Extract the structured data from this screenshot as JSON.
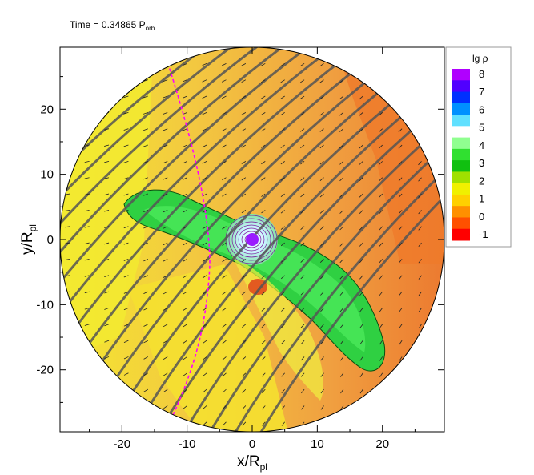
{
  "header": {
    "time_label": "Time = 0.34865 P",
    "time_sub": "orb"
  },
  "chart_data": {
    "type": "heatmap",
    "title": "",
    "xlabel": "x/R",
    "xlabel_sub": "pl",
    "ylabel": "y/R",
    "ylabel_sub": "pl",
    "xlim": [
      -29.5,
      29.5
    ],
    "ylim": [
      -29.5,
      29.5
    ],
    "x_ticks": [
      -20,
      -10,
      0,
      10,
      20
    ],
    "y_ticks": [
      20,
      10,
      0,
      -10,
      -20
    ],
    "x_tick_labels": [
      "-20",
      "-10",
      "0",
      "10",
      "20"
    ],
    "y_tick_labels": [
      "20",
      "10",
      "0",
      "-10",
      "-20"
    ],
    "domain_radius": 29.5,
    "planet": {
      "x": 0,
      "y": 0,
      "radius": 1,
      "color": "#9a1bff"
    },
    "colorbar": {
      "title": "lg ρ",
      "levels": [
        8,
        7,
        6,
        5,
        4,
        3,
        2,
        1,
        0,
        -1
      ],
      "labels": [
        "8",
        "7",
        "6",
        "5",
        "4",
        "3",
        "2",
        "1",
        "0",
        "-1"
      ],
      "colors": [
        "#b000ff",
        "#5000ff",
        "#0030ff",
        "#0090ff",
        "#60e0ff",
        "#ffffff",
        "#90ff90",
        "#30e030",
        "#10c010",
        "#a0e000",
        "#f0f000",
        "#ffd000",
        "#ff9000",
        "#ff5000",
        "#ff0000"
      ]
    },
    "regions": [
      {
        "name": "background",
        "value": 0.5,
        "color": "#f0c040"
      },
      {
        "name": "outer-orange",
        "value": -0.3,
        "color": "#f08030"
      },
      {
        "name": "left-yellow",
        "value": 0.9,
        "color": "#f2ea30"
      },
      {
        "name": "tail-green",
        "value": 2.0,
        "color": "#30d040"
      },
      {
        "name": "core",
        "value": 6.0,
        "color": "#d0f8ff"
      }
    ],
    "terminator_color": "#ff00ff",
    "streamline_color": "#555555"
  }
}
